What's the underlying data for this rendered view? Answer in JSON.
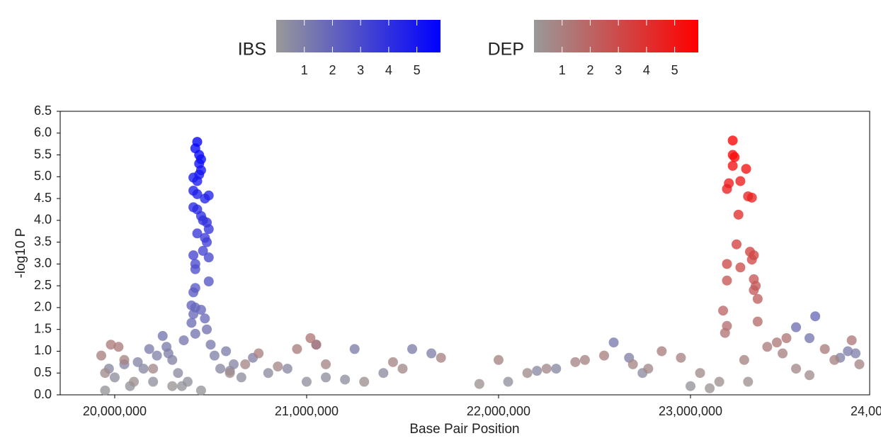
{
  "chart_data": {
    "type": "scatter",
    "x_label": "Base Pair Position",
    "y_label": "-log10 P",
    "xlim": [
      19716000,
      23933600
    ],
    "ylim": [
      0,
      6.5
    ],
    "xticks": [
      {
        "value": 20000000,
        "label": "20,000,000"
      },
      {
        "value": 21000000,
        "label": "21,000,000"
      },
      {
        "value": 22000000,
        "label": "22,000,000"
      },
      {
        "value": 23000000,
        "label": "23,000,000"
      },
      {
        "value": 24000000,
        "label": "24,000,000"
      }
    ],
    "yticks": [
      {
        "value": 0,
        "label": "0.0"
      },
      0.5,
      {
        "value": 1,
        "label": "1.0"
      },
      1.5,
      {
        "value": 2,
        "label": "2.0"
      },
      2.5,
      {
        "value": 3,
        "label": "3.0"
      },
      3.5,
      {
        "value": 4,
        "label": "4.0"
      },
      4.5,
      {
        "value": 5,
        "label": "5.0"
      },
      5.5,
      {
        "value": 6,
        "label": "6.0"
      },
      6.5
    ],
    "series": [
      {
        "name": "IBS",
        "color_low": "#999999",
        "color": "#0000ff",
        "clim": [
          0,
          5.84
        ],
        "cticks": [
          1,
          2,
          3,
          4,
          5
        ],
        "x": [
          20430000,
          20420000,
          20440000,
          20450000,
          20440000,
          20450000,
          20440000,
          20410000,
          20430000,
          20410000,
          20430000,
          20490000,
          20470000,
          20410000,
          20430000,
          20450000,
          20460000,
          20480000,
          20490000,
          20470000,
          20480000,
          20430000,
          20460000,
          20410000,
          20490000,
          20420000,
          20420000,
          20490000,
          20420000,
          20410000,
          20400000,
          20420000,
          20450000,
          20410000,
          20470000,
          20400000,
          20480000,
          20420000,
          19950000,
          19970000,
          20000000,
          20050000,
          20080000,
          20120000,
          20150000,
          20180000,
          20220000,
          20250000,
          20270000,
          20300000,
          20330000,
          20360000,
          20380000,
          20500000,
          20520000,
          20550000,
          20580000,
          20620000,
          20660000,
          20720000,
          20800000,
          20900000,
          21000000,
          21050000,
          21100000,
          21200000,
          21250000,
          21400000,
          21550000,
          21650000,
          22050000,
          22200000,
          22300000,
          22600000,
          22680000,
          22750000,
          23000000,
          23550000,
          23620000,
          23650000,
          23780000,
          23820000,
          23860000,
          20280000,
          20350000,
          20600000,
          20450000,
          20200000
        ],
        "values": [
          5.8,
          5.65,
          5.5,
          5.4,
          5.3,
          5.15,
          5.05,
          4.98,
          4.9,
          4.68,
          4.6,
          4.57,
          4.5,
          4.3,
          4.25,
          4.1,
          4.0,
          3.95,
          3.8,
          3.6,
          3.5,
          3.7,
          3.3,
          3.2,
          3.15,
          3.0,
          2.88,
          2.6,
          2.45,
          2.35,
          2.05,
          2.0,
          1.95,
          1.85,
          1.75,
          1.65,
          1.5,
          1.4,
          0.1,
          0.6,
          0.4,
          0.7,
          0.2,
          0.75,
          0.6,
          1.05,
          0.9,
          1.35,
          1.1,
          0.8,
          0.5,
          1.25,
          0.3,
          1.15,
          0.9,
          0.6,
          1.0,
          0.7,
          0.4,
          0.85,
          0.5,
          0.6,
          0.3,
          1.15,
          0.4,
          0.35,
          1.05,
          0.5,
          1.05,
          0.95,
          0.3,
          0.55,
          0.6,
          1.2,
          0.85,
          0.5,
          0.2,
          1.55,
          1.3,
          1.8,
          0.85,
          1.0,
          0.95,
          0.95,
          0.2,
          0.55,
          0.1,
          0.3
        ]
      },
      {
        "name": "DEP",
        "color_low": "#999999",
        "color": "#ff0000",
        "clim": [
          0,
          5.84
        ],
        "cticks": [
          1,
          2,
          3,
          4,
          5
        ],
        "x": [
          23220000,
          23220000,
          23230000,
          23220000,
          23290000,
          23260000,
          23200000,
          23190000,
          23300000,
          23320000,
          23250000,
          23240000,
          23310000,
          23330000,
          23320000,
          23190000,
          23260000,
          23330000,
          23190000,
          23340000,
          23330000,
          23350000,
          23170000,
          23350000,
          23190000,
          23180000,
          19930000,
          19950000,
          19980000,
          20020000,
          20050000,
          20100000,
          20200000,
          20300000,
          20600000,
          20680000,
          20750000,
          20850000,
          20950000,
          21020000,
          21050000,
          21100000,
          21300000,
          21450000,
          21500000,
          21700000,
          21900000,
          22000000,
          22150000,
          22250000,
          22400000,
          22450000,
          22550000,
          22700000,
          22780000,
          22850000,
          22950000,
          23100000,
          23280000,
          23300000,
          23450000,
          23480000,
          23500000,
          23550000,
          23620000,
          23700000,
          23750000,
          23840000,
          23880000,
          23400000,
          23050000,
          23150000
        ],
        "values": [
          5.83,
          5.5,
          5.45,
          5.25,
          5.18,
          4.9,
          4.85,
          4.72,
          4.55,
          4.52,
          4.13,
          3.45,
          3.28,
          3.2,
          3.1,
          3.0,
          2.92,
          2.65,
          2.62,
          2.5,
          2.4,
          2.2,
          1.93,
          1.68,
          1.58,
          1.42,
          0.9,
          0.5,
          1.15,
          1.1,
          0.8,
          0.3,
          0.6,
          0.2,
          0.5,
          0.7,
          0.95,
          0.65,
          1.05,
          1.3,
          1.15,
          0.7,
          0.3,
          0.75,
          0.6,
          0.85,
          0.25,
          0.8,
          0.5,
          0.6,
          0.75,
          0.8,
          0.9,
          0.7,
          0.6,
          1.0,
          0.85,
          0.15,
          0.8,
          0.3,
          1.2,
          0.95,
          1.3,
          0.6,
          0.45,
          1.05,
          0.8,
          1.25,
          0.7,
          1.1,
          0.5,
          0.3
        ]
      }
    ]
  }
}
